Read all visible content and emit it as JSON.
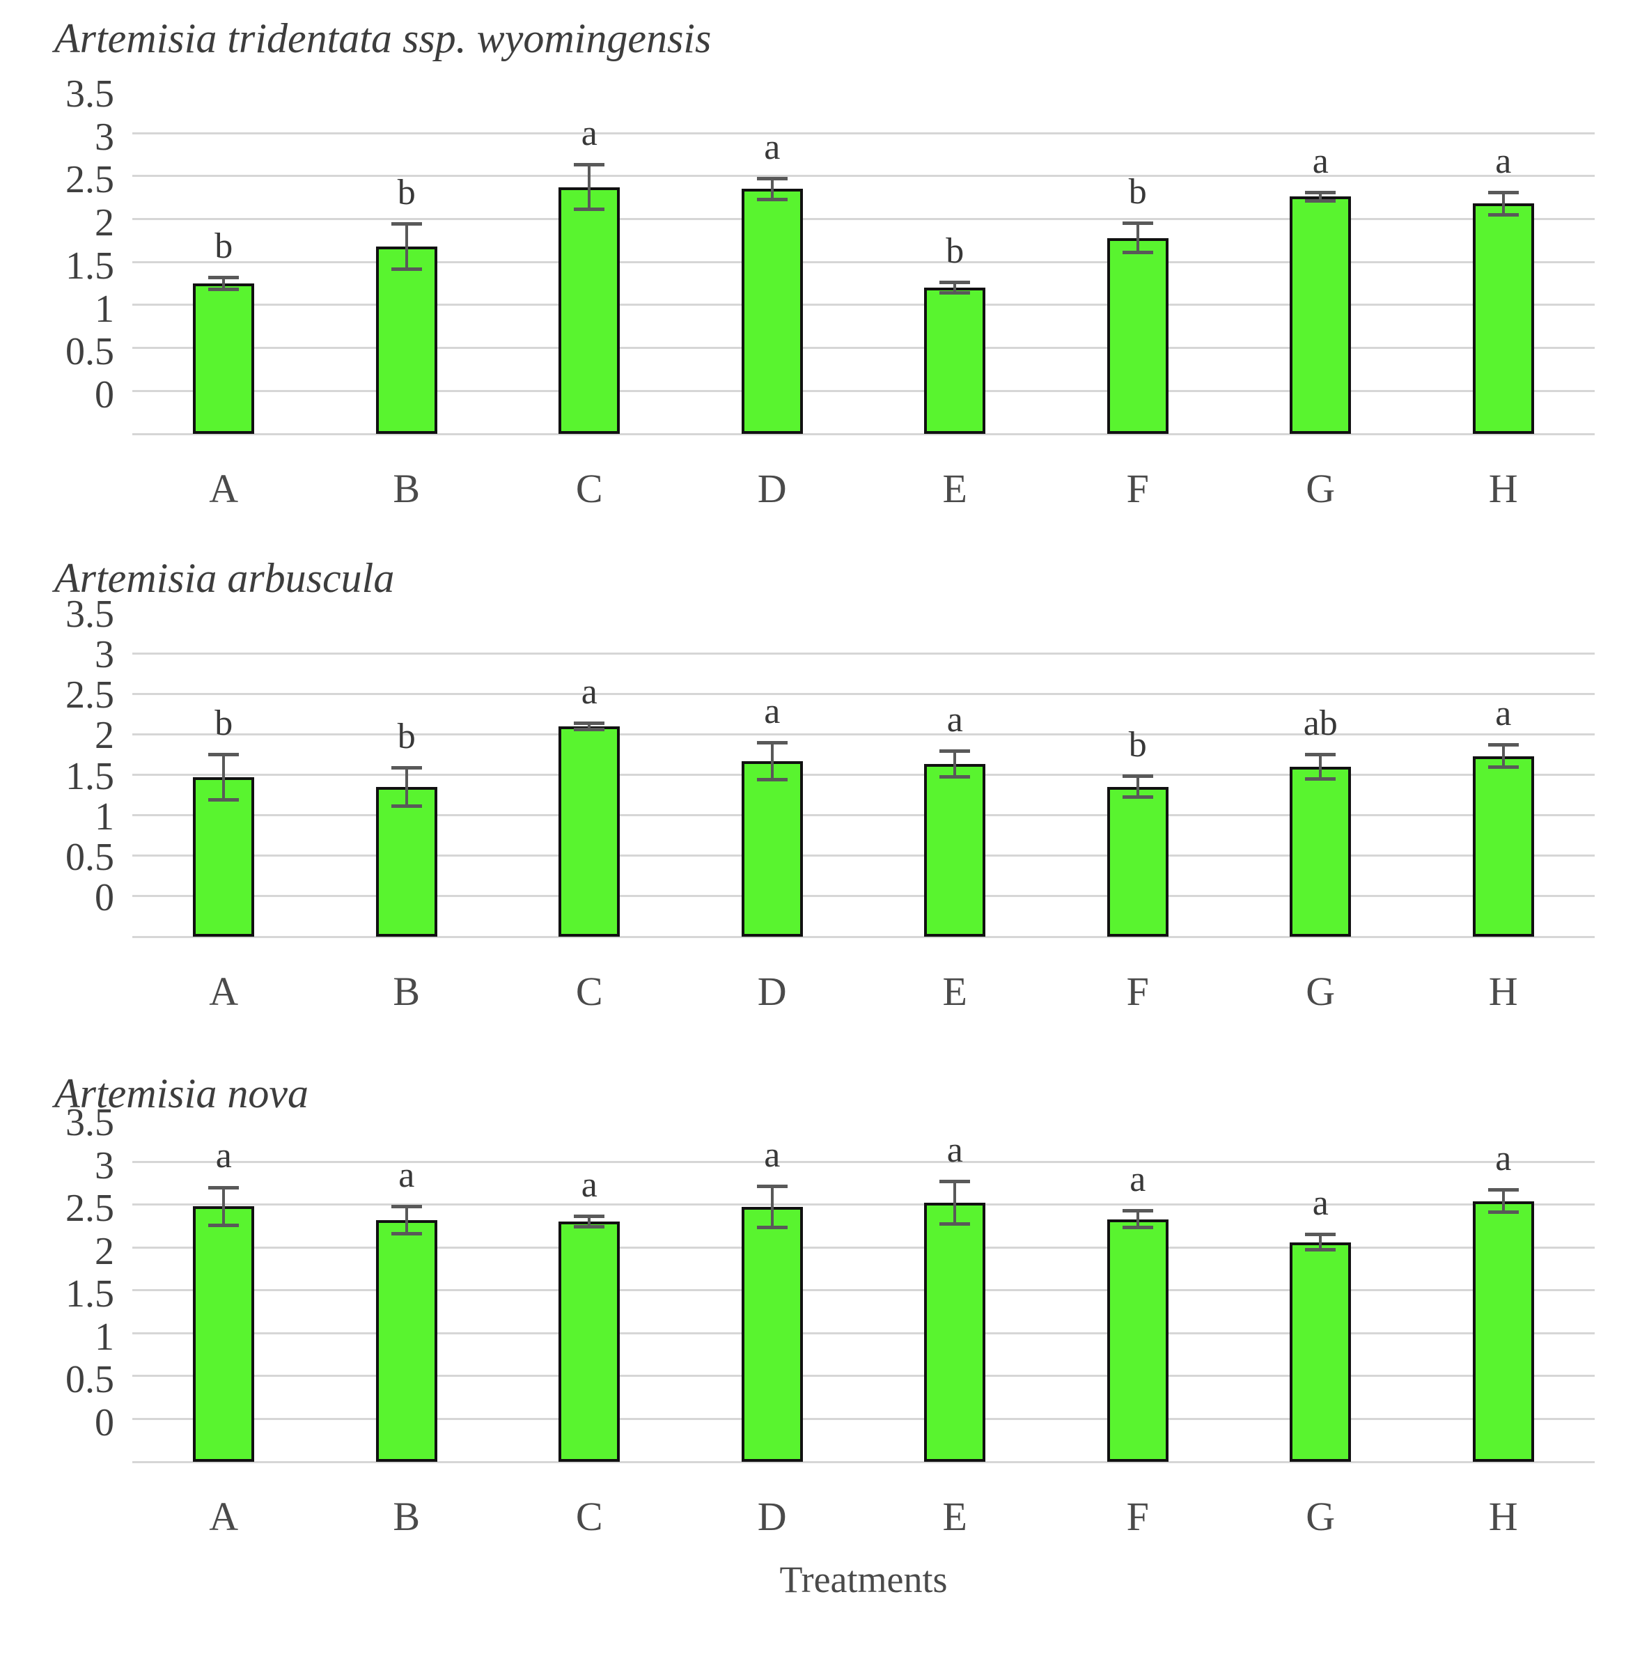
{
  "figure": {
    "x_axis_title": "Treatments",
    "categories": [
      "A",
      "B",
      "C",
      "D",
      "E",
      "F",
      "G",
      "H"
    ],
    "y_tick_labels": [
      "0",
      "0.5",
      "1",
      "1.5",
      "2",
      "2.5",
      "3",
      "3.5"
    ],
    "colors": {
      "bar_fill": "#59f42f",
      "bar_border": "#111111",
      "gridline": "#d6d6d6",
      "error_bar": "#595959",
      "text": "#3d3d3d"
    }
  },
  "chart_data": [
    {
      "type": "bar",
      "title": "Artemisia tridentata ssp. wyomingensis",
      "categories": [
        "A",
        "B",
        "C",
        "D",
        "E",
        "F",
        "G",
        "H"
      ],
      "values": [
        1.75,
        2.18,
        2.87,
        2.85,
        1.7,
        2.28,
        2.76,
        2.68
      ],
      "errors": [
        0.09,
        0.28,
        0.28,
        0.14,
        0.08,
        0.19,
        0.07,
        0.15
      ],
      "sig_letters": [
        "b",
        "b",
        "a",
        "a",
        "b",
        "b",
        "a",
        "a"
      ],
      "xlabel": "",
      "ylabel": "",
      "ylim": [
        0,
        3.5
      ],
      "yticks": [
        0,
        0.5,
        1,
        1.5,
        2,
        2.5,
        3,
        3.5
      ],
      "grid": "horizontal",
      "legend": "none"
    },
    {
      "type": "bar",
      "title": "Artemisia arbuscula",
      "categories": [
        "A",
        "B",
        "C",
        "D",
        "E",
        "F",
        "G",
        "H"
      ],
      "values": [
        1.97,
        1.85,
        2.6,
        2.17,
        2.13,
        1.85,
        2.1,
        2.23
      ],
      "errors": [
        0.3,
        0.26,
        0.06,
        0.25,
        0.18,
        0.15,
        0.17,
        0.16
      ],
      "sig_letters": [
        "b",
        "b",
        "a",
        "a",
        "a",
        "b",
        "ab",
        "a"
      ],
      "xlabel": "",
      "ylabel": "",
      "ylim": [
        0,
        3.5
      ],
      "yticks": [
        0,
        0.5,
        1,
        1.5,
        2,
        2.5,
        3,
        3.5
      ],
      "grid": "horizontal",
      "legend": "none"
    },
    {
      "type": "bar",
      "title": "Artemisia nova",
      "categories": [
        "A",
        "B",
        "C",
        "D",
        "E",
        "F",
        "G",
        "H"
      ],
      "values": [
        2.98,
        2.82,
        2.8,
        2.97,
        3.02,
        2.83,
        2.56,
        3.04
      ],
      "errors": [
        0.24,
        0.18,
        0.08,
        0.26,
        0.27,
        0.12,
        0.11,
        0.15
      ],
      "sig_letters": [
        "a",
        "a",
        "a",
        "a",
        "a",
        "a",
        "a",
        "a"
      ],
      "xlabel": "Treatments",
      "ylabel": "",
      "ylim": [
        0,
        3.5
      ],
      "yticks": [
        0,
        0.5,
        1,
        1.5,
        2,
        2.5,
        3,
        3.5
      ],
      "grid": "horizontal",
      "legend": "none"
    }
  ]
}
